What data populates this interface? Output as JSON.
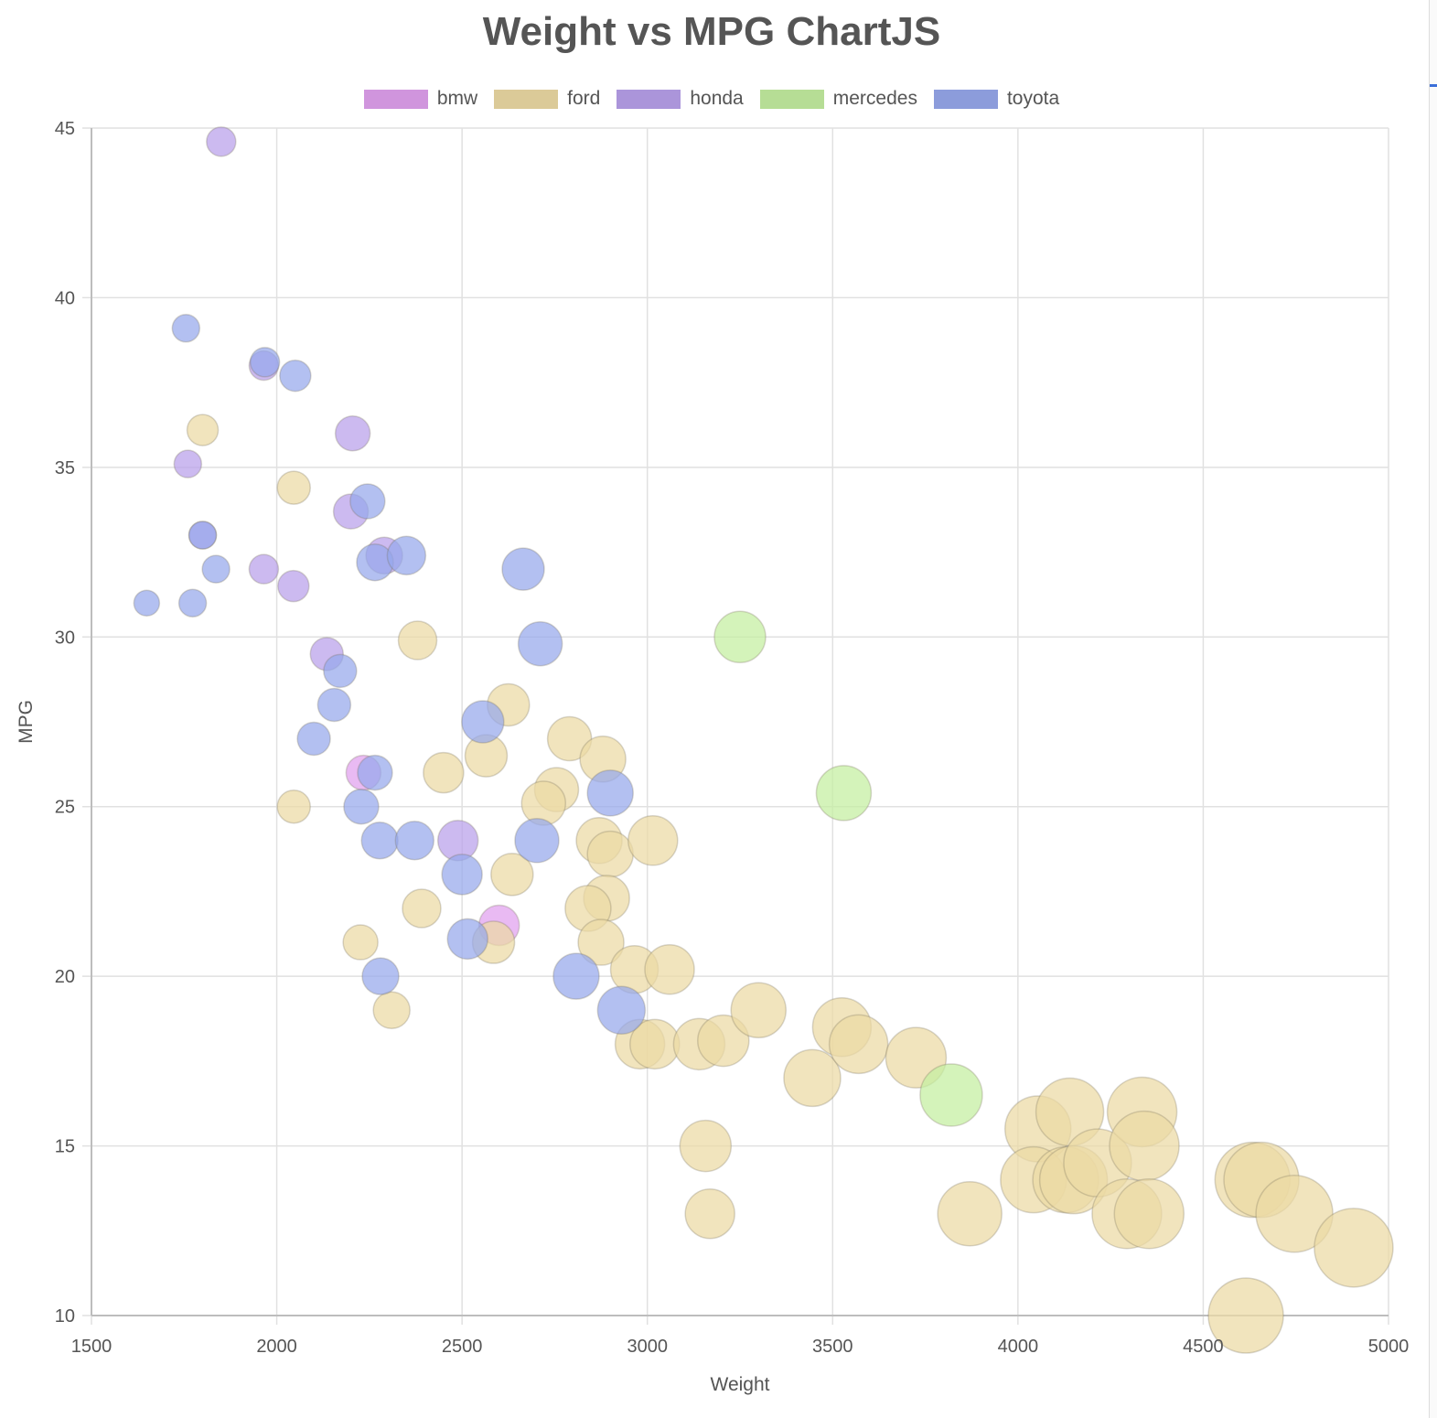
{
  "chart_data": {
    "type": "bubble",
    "title": "Weight vs MPG ChartJS",
    "xlabel": "Weight",
    "ylabel": "MPG",
    "xlim": [
      1500,
      5000
    ],
    "ylim": [
      10,
      45
    ],
    "xticks": [
      1500,
      2000,
      2500,
      3000,
      3500,
      4000,
      4500,
      5000
    ],
    "yticks": [
      10,
      15,
      20,
      25,
      30,
      35,
      40,
      45
    ],
    "grid": true,
    "legend_position": "top",
    "series": [
      {
        "name": "bmw",
        "color": "#e0a0ee",
        "points": [
          [
            2234,
            26,
            19
          ],
          [
            2600,
            21.5,
            22
          ]
        ]
      },
      {
        "name": "ford",
        "color": "#ecd9a3",
        "points": [
          [
            1800,
            36.1,
            17
          ],
          [
            2046,
            34.4,
            18
          ],
          [
            2046,
            25,
            18
          ],
          [
            2380,
            29.9,
            21
          ],
          [
            2226,
            21,
            19
          ],
          [
            2310,
            19,
            20
          ],
          [
            2391,
            22,
            21
          ],
          [
            2450,
            26,
            22
          ],
          [
            2565,
            26.5,
            23
          ],
          [
            2625,
            28,
            23
          ],
          [
            2585,
            21,
            23
          ],
          [
            2635,
            23,
            23
          ],
          [
            2790,
            27,
            24
          ],
          [
            2755,
            25.5,
            24
          ],
          [
            2720,
            25.1,
            24
          ],
          [
            2880,
            26.4,
            25
          ],
          [
            2870,
            24,
            25
          ],
          [
            2900,
            23.6,
            25
          ],
          [
            2890,
            22.3,
            25
          ],
          [
            2840,
            22,
            25
          ],
          [
            2875,
            21,
            25
          ],
          [
            2965,
            20.2,
            26
          ],
          [
            3015,
            24,
            27
          ],
          [
            3060,
            20.2,
            27
          ],
          [
            2980,
            18,
            27
          ],
          [
            3020,
            18,
            27
          ],
          [
            3140,
            18,
            28
          ],
          [
            3205,
            18.1,
            28
          ],
          [
            3300,
            19,
            30
          ],
          [
            3157,
            15,
            28
          ],
          [
            3169,
            13,
            27
          ],
          [
            3445,
            17,
            31
          ],
          [
            3525,
            18.5,
            32
          ],
          [
            3570,
            18,
            32
          ],
          [
            3725,
            17.6,
            33
          ],
          [
            3870,
            13,
            35
          ],
          [
            4054,
            15.5,
            36
          ],
          [
            4042,
            14,
            36
          ],
          [
            4140,
            16,
            37
          ],
          [
            4129,
            14,
            36
          ],
          [
            4150,
            14,
            37
          ],
          [
            4215,
            14.5,
            37
          ],
          [
            4335,
            16,
            38
          ],
          [
            4341,
            15,
            38
          ],
          [
            4294,
            13,
            38
          ],
          [
            4354,
            13,
            38
          ],
          [
            4633,
            14,
            41
          ],
          [
            4657,
            14,
            41
          ],
          [
            4746,
            13,
            42
          ],
          [
            4906,
            12,
            43
          ],
          [
            4615,
            10,
            41
          ]
        ]
      },
      {
        "name": "honda",
        "color": "#b8a0ea",
        "points": [
          [
            1850,
            44.6,
            16
          ],
          [
            1760,
            35.1,
            15
          ],
          [
            1965,
            38,
            16
          ],
          [
            1800,
            33,
            15
          ],
          [
            1965,
            32,
            16
          ],
          [
            2045,
            31.5,
            17
          ],
          [
            2205,
            36,
            19
          ],
          [
            2200,
            33.7,
            19
          ],
          [
            2290,
            32.4,
            20
          ],
          [
            2135,
            29.5,
            18
          ],
          [
            2489,
            24,
            22
          ]
        ]
      },
      {
        "name": "mercedes",
        "color": "#c4eea0",
        "points": [
          [
            3250,
            30,
            28
          ],
          [
            3530,
            25.4,
            30
          ],
          [
            3820,
            16.5,
            34
          ]
        ]
      },
      {
        "name": "toyota",
        "color": "#96a8ec",
        "points": [
          [
            1755,
            39.1,
            15
          ],
          [
            1649,
            31,
            14
          ],
          [
            1773,
            31,
            15
          ],
          [
            1836,
            32,
            15
          ],
          [
            1800,
            33,
            15
          ],
          [
            1968,
            38.1,
            16
          ],
          [
            2050,
            37.7,
            17
          ],
          [
            2245,
            34,
            19
          ],
          [
            2265,
            32.2,
            20
          ],
          [
            2350,
            32.4,
            21
          ],
          [
            2665,
            32,
            23
          ],
          [
            2711,
            29.8,
            24
          ],
          [
            2171,
            29,
            18
          ],
          [
            2155,
            28,
            18
          ],
          [
            2100,
            27,
            18
          ],
          [
            2265,
            26,
            19
          ],
          [
            2228,
            25,
            19
          ],
          [
            2278,
            24,
            20
          ],
          [
            2372,
            24,
            21
          ],
          [
            2500,
            23,
            22
          ],
          [
            2515,
            21.1,
            22
          ],
          [
            2280,
            20,
            20
          ],
          [
            2556,
            27.5,
            23
          ],
          [
            2702,
            24,
            24
          ],
          [
            2900,
            25.4,
            25
          ],
          [
            2808,
            20,
            25
          ],
          [
            2930,
            19,
            26
          ]
        ]
      }
    ]
  }
}
